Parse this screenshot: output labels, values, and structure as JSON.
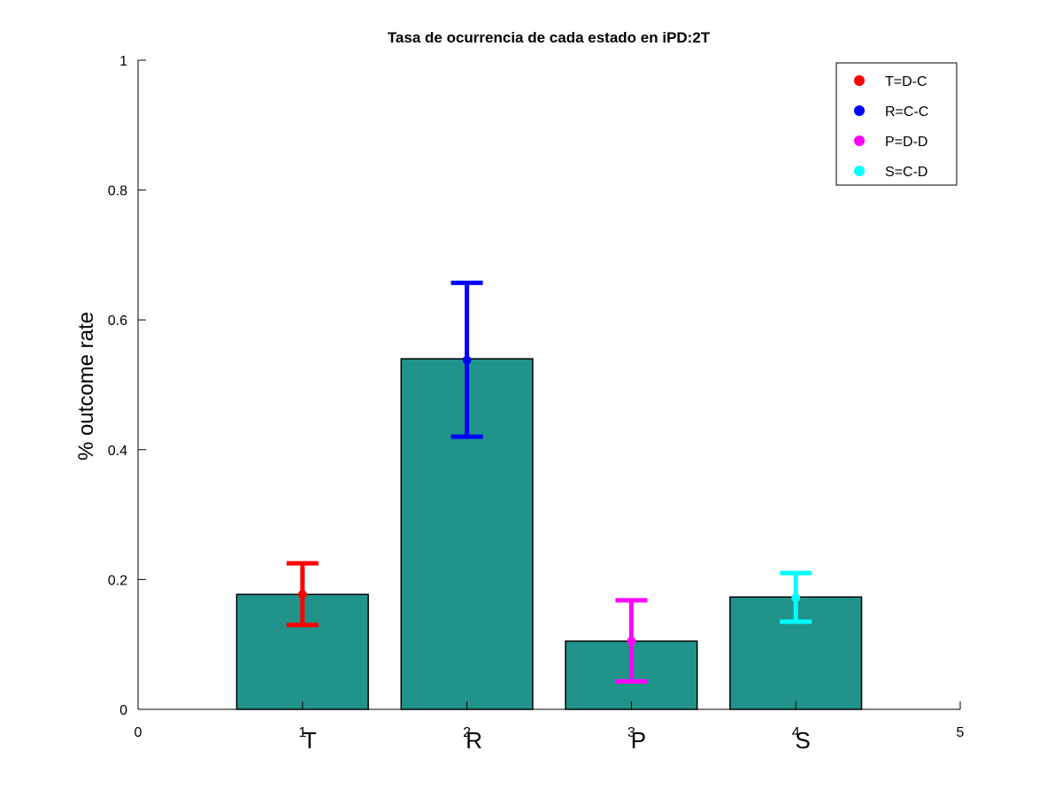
{
  "chart_data": {
    "type": "bar",
    "title": "Tasa de ocurrencia de cada estado en iPD:2T",
    "xlabel": "",
    "ylabel": "% outcome rate",
    "xlim": [
      0,
      5
    ],
    "ylim": [
      0,
      1
    ],
    "x_ticks": [
      "0",
      "1",
      "2",
      "3",
      "4",
      "5"
    ],
    "y_ticks": [
      "0",
      "0.2",
      "0.4",
      "0.6",
      "0.8",
      "1"
    ],
    "grid": false,
    "legend_position": "top-right",
    "bar_color": "#20948b",
    "categories": [
      "T",
      "R",
      "P",
      "S"
    ],
    "x": [
      1,
      2,
      3,
      4
    ],
    "values": [
      0.177,
      0.54,
      0.105,
      0.173
    ],
    "error_bars": [
      {
        "name": "T=D-C",
        "x": 1,
        "value": 0.177,
        "low": 0.13,
        "high": 0.225,
        "color": "#ff0000"
      },
      {
        "name": "R=C-C",
        "x": 2,
        "value": 0.538,
        "low": 0.42,
        "high": 0.657,
        "color": "#0000ff"
      },
      {
        "name": "P=D-D",
        "x": 3,
        "value": 0.105,
        "low": 0.043,
        "high": 0.168,
        "color": "#ff00ff"
      },
      {
        "name": "S=C-D",
        "x": 4,
        "value": 0.172,
        "low": 0.135,
        "high": 0.21,
        "color": "#00ffff"
      }
    ]
  }
}
